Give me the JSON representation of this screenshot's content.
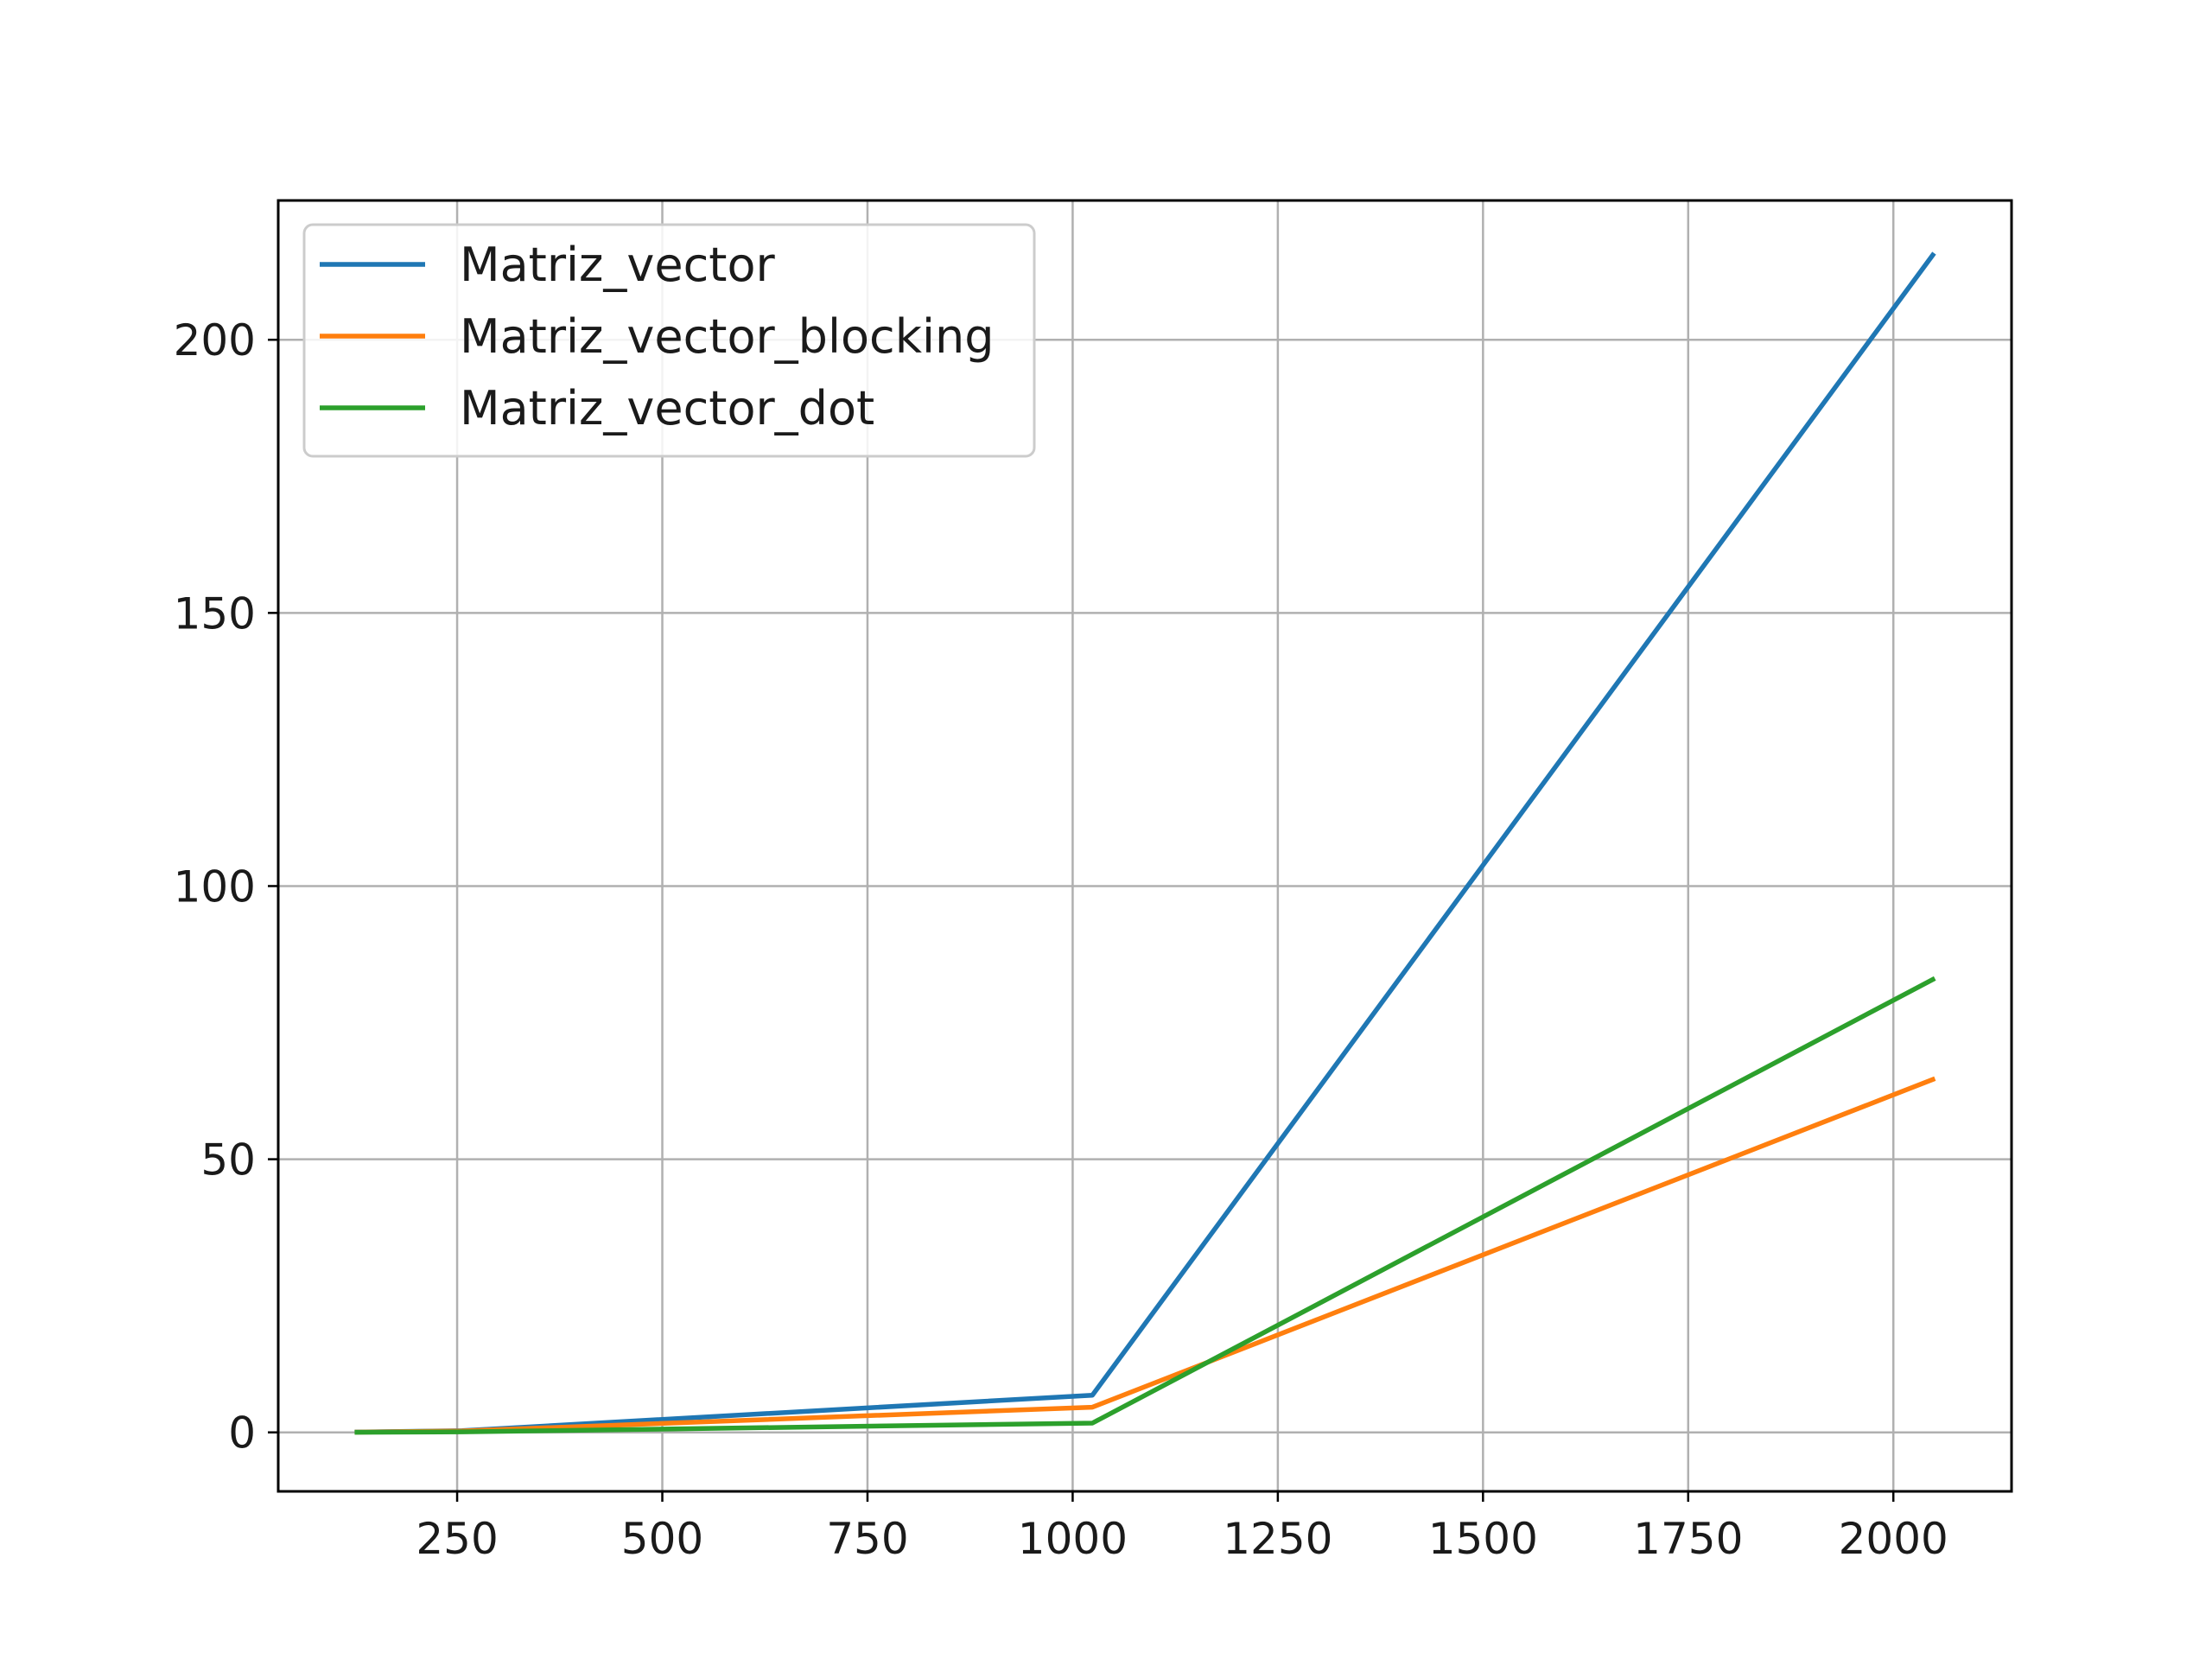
{
  "chart_data": {
    "type": "line",
    "title": "",
    "xlabel": "",
    "ylabel": "",
    "xlim": [
      32,
      2144
    ],
    "ylim": [
      -10.8,
      225.5
    ],
    "grid": true,
    "legend_position": "top-left",
    "x_ticks": [
      250,
      500,
      750,
      1000,
      1250,
      1500,
      1750,
      2000
    ],
    "x_tick_labels": [
      "250",
      "500",
      "750",
      "1000",
      "1250",
      "1500",
      "1750",
      "2000"
    ],
    "y_ticks": [
      0,
      50,
      100,
      150,
      200
    ],
    "y_tick_labels": [
      "0",
      "50",
      "100",
      "150",
      "200"
    ],
    "series": [
      {
        "name": "Matriz_vector",
        "color": "#1f77b4",
        "x": [
          128,
          256,
          1024,
          2048
        ],
        "y": [
          0.05,
          0.3,
          6.8,
          215.5
        ]
      },
      {
        "name": "Matriz_vector_blocking",
        "color": "#ff7f0e",
        "x": [
          128,
          256,
          1024,
          2048
        ],
        "y": [
          0.04,
          0.25,
          4.6,
          64.6
        ]
      },
      {
        "name": "Matriz_vector_dot",
        "color": "#2ca02c",
        "x": [
          128,
          256,
          1024,
          2048
        ],
        "y": [
          0.02,
          0.1,
          1.7,
          82.9
        ]
      }
    ]
  }
}
